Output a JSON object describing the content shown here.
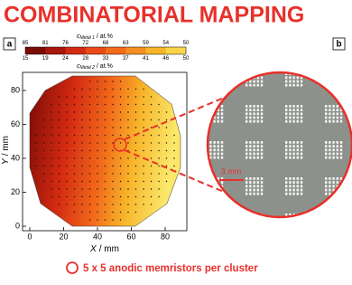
{
  "title": "COMBINATORIAL MAPPING",
  "panel_a": {
    "label": "a",
    "colorbar": {
      "top_label": {
        "symbol": "c",
        "subscript": "Metal 1",
        "unit": "/ at.%"
      },
      "bottom_label": {
        "symbol": "c",
        "subscript": "Metal 2",
        "unit": "/ at.%"
      },
      "top_ticks": [
        85,
        81,
        76,
        72,
        68,
        63,
        59,
        54,
        50
      ],
      "bottom_ticks": [
        15,
        19,
        24,
        28,
        33,
        37,
        41,
        46,
        50
      ]
    },
    "x_label": {
      "symbol": "X",
      "unit": "/ mm"
    },
    "y_label": {
      "symbol": "Y",
      "unit": "/ mm"
    },
    "xticks": [
      0,
      20,
      40,
      60,
      80
    ],
    "yticks": [
      0,
      20,
      40,
      60,
      80
    ]
  },
  "panel_b": {
    "label": "b",
    "scale_bar": "3 mm"
  },
  "legend": "5 x 5 anodic memristors per cluster"
}
